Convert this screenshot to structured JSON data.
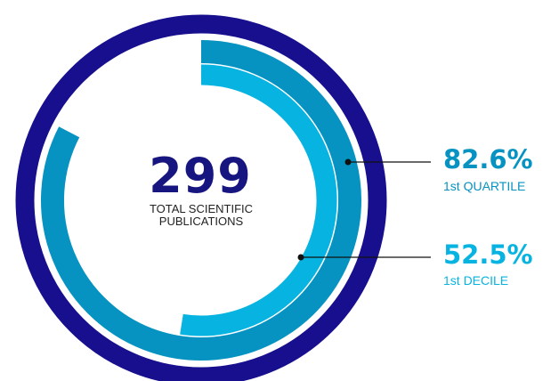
{
  "colors": {
    "outer_ring": "#170f8d",
    "quartile": "#0693c1",
    "decile": "#07b3e1",
    "total_text": "#17157f",
    "label_text": "#222222"
  },
  "center": {
    "value": "299",
    "label_line1": "TOTAL SCIENTIFIC",
    "label_line2": "PUBLICATIONS"
  },
  "chart_data": {
    "type": "radial-bar",
    "total": 299,
    "total_label": "TOTAL SCIENTIFIC PUBLICATIONS",
    "series": [
      {
        "name": "1st QUARTILE",
        "value": 82.6,
        "display": "82.6%",
        "color": "#0693c1"
      },
      {
        "name": "1st DECILE",
        "value": 52.5,
        "display": "52.5%",
        "color": "#07b3e1"
      }
    ]
  }
}
